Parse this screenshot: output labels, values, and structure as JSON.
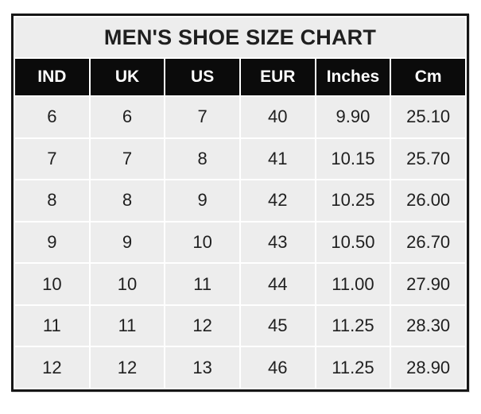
{
  "table": {
    "title": "MEN'S SHOE SIZE CHART",
    "headers": [
      "IND",
      "UK",
      "US",
      "EUR",
      "Inches",
      "Cm"
    ],
    "rows": [
      [
        "6",
        "6",
        "7",
        "40",
        "9.90",
        "25.10"
      ],
      [
        "7",
        "7",
        "8",
        "41",
        "10.15",
        "25.70"
      ],
      [
        "8",
        "8",
        "9",
        "42",
        "10.25",
        "26.00"
      ],
      [
        "9",
        "9",
        "10",
        "43",
        "10.50",
        "26.70"
      ],
      [
        "10",
        "10",
        "11",
        "44",
        "11.00",
        "27.90"
      ],
      [
        "11",
        "11",
        "12",
        "45",
        "11.25",
        "28.30"
      ],
      [
        "12",
        "12",
        "13",
        "46",
        "11.25",
        "28.90"
      ]
    ],
    "colors": {
      "header_bg": "#0b0b0b",
      "header_text": "#ffffff",
      "cell_bg": "#ededed",
      "body_text": "#1f1f1f",
      "border": "#161616",
      "grid_gap": "#ffffff"
    }
  },
  "chart_data": {
    "type": "table",
    "title": "MEN'S SHOE SIZE CHART",
    "columns": [
      "IND",
      "UK",
      "US",
      "EUR",
      "Inches",
      "Cm"
    ],
    "rows": [
      [
        6,
        6,
        7,
        40,
        9.9,
        25.1
      ],
      [
        7,
        7,
        8,
        41,
        10.15,
        25.7
      ],
      [
        8,
        8,
        9,
        42,
        10.25,
        26.0
      ],
      [
        9,
        9,
        10,
        43,
        10.5,
        26.7
      ],
      [
        10,
        10,
        11,
        44,
        11.0,
        27.9
      ],
      [
        11,
        11,
        12,
        45,
        11.25,
        28.3
      ],
      [
        12,
        12,
        13,
        46,
        11.25,
        28.9
      ]
    ]
  }
}
